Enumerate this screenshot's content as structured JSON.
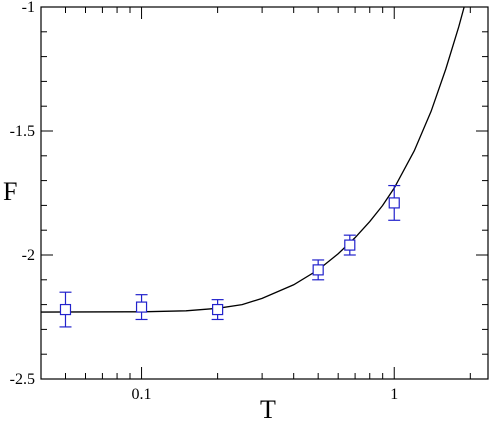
{
  "chart_data": {
    "type": "scatter",
    "title": "",
    "xlabel": "T",
    "ylabel": "F",
    "xscale": "log",
    "xlim": [
      0.04,
      2.35
    ],
    "ylim": [
      -2.5,
      -1.0
    ],
    "x_major_ticks": [
      {
        "value": 0.1,
        "label": "0.1"
      },
      {
        "value": 1,
        "label": "1"
      }
    ],
    "y_major_ticks": [
      {
        "value": -2.5,
        "label": "-2.5"
      },
      {
        "value": -2.0,
        "label": "-2"
      },
      {
        "value": -1.5,
        "label": "-1.5"
      },
      {
        "value": -1.0,
        "label": "-1"
      }
    ],
    "grid": false,
    "legend": "none",
    "series": [
      {
        "kind": "points-with-error-bars",
        "marker": "open-square",
        "color": "#2222cc",
        "points": [
          {
            "x": 0.05,
            "y": -2.22,
            "err": 0.07
          },
          {
            "x": 0.1,
            "y": -2.21,
            "err": 0.05
          },
          {
            "x": 0.2,
            "y": -2.22,
            "err": 0.04
          },
          {
            "x": 0.5,
            "y": -2.06,
            "err": 0.04
          },
          {
            "x": 0.667,
            "y": -1.96,
            "err": 0.04
          },
          {
            "x": 1.0,
            "y": -1.79,
            "err": 0.07
          }
        ]
      },
      {
        "kind": "fit-curve",
        "color": "#000000",
        "x": [
          0.04,
          0.1,
          0.15,
          0.2,
          0.25,
          0.3,
          0.4,
          0.5,
          0.6,
          0.7,
          0.8,
          0.9,
          1.0,
          1.2,
          1.4,
          1.6,
          1.8,
          1.95
        ],
        "y": [
          -2.23,
          -2.229,
          -2.225,
          -2.215,
          -2.2,
          -2.175,
          -2.12,
          -2.06,
          -1.995,
          -1.93,
          -1.865,
          -1.8,
          -1.73,
          -1.58,
          -1.42,
          -1.25,
          -1.08,
          -0.95
        ]
      }
    ]
  }
}
